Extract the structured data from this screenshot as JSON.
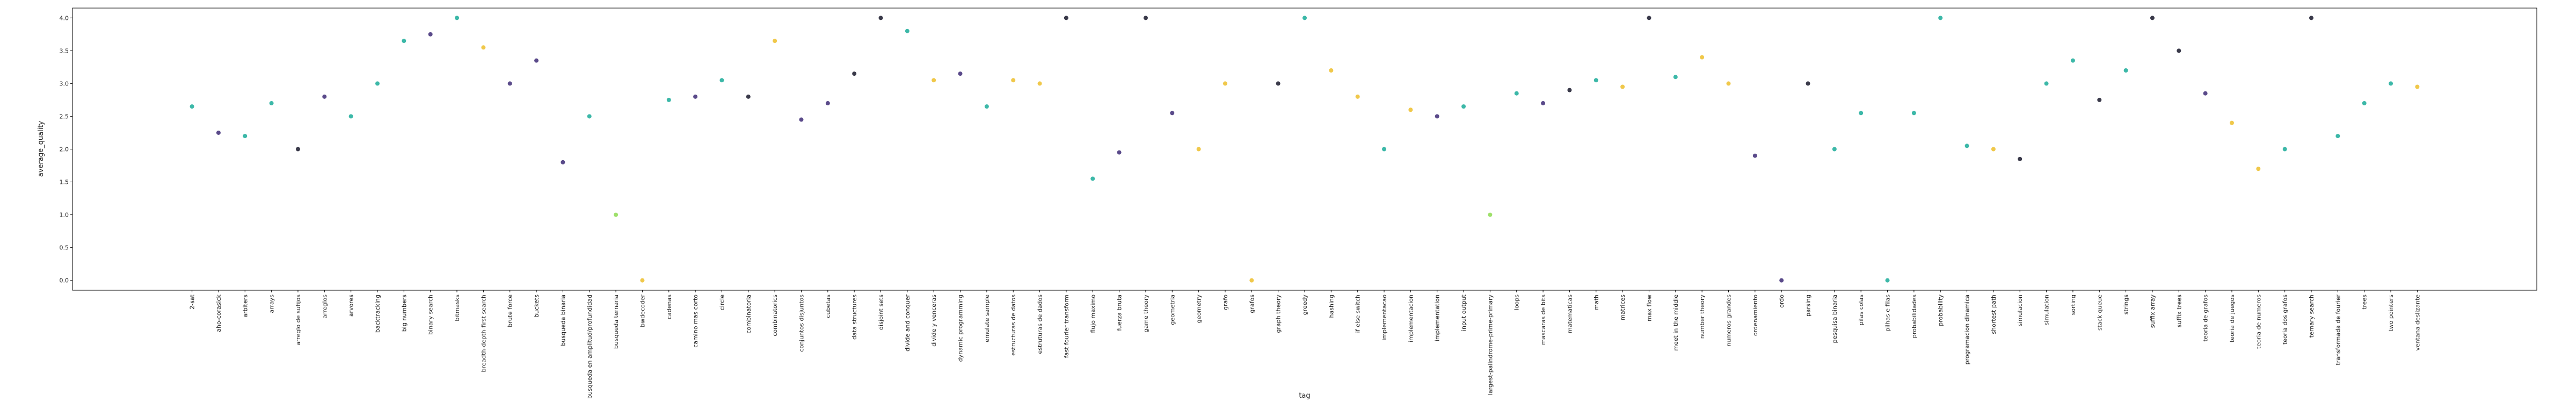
{
  "chart_data": {
    "type": "scatter",
    "x_label": "tag",
    "y_label": "average_quality",
    "ylim": [
      -0.15,
      4.15
    ],
    "yticks": [
      {
        "value": 0,
        "label": "0.0"
      },
      {
        "value": 0.5,
        "label": "0.5"
      },
      {
        "value": 1,
        "label": "1.0"
      },
      {
        "value": 1.5,
        "label": "1.5"
      },
      {
        "value": 2,
        "label": "2.0"
      },
      {
        "value": 2.5,
        "label": "2.5"
      },
      {
        "value": 3,
        "label": "3.0"
      },
      {
        "value": 3.5,
        "label": "3.5"
      },
      {
        "value": 4,
        "label": "4.0"
      }
    ],
    "categories": [
      "2-sat",
      "aho-corasick",
      "arbiters",
      "arrays",
      "arreglo de sufijos",
      "arreglos",
      "arvores",
      "backtracking",
      "big numbers",
      "binary search",
      "bitmasks",
      "breadth-depth-first search",
      "brute force",
      "buckets",
      "busqueda binaria",
      "busqueda en amplitud/profundidad",
      "busqueda ternaria",
      "bwdecoder",
      "cadenas",
      "camino mas corto",
      "circle",
      "combinatoria",
      "combinatorics",
      "conjuntos disjuntos",
      "cubetas",
      "data structures",
      "disjoint sets",
      "divide and conquer",
      "divide y venceras",
      "dynamic programming",
      "emulate sample",
      "estructuras de datos",
      "estruturas de dados",
      "fast fourier transform",
      "flujo maximo",
      "fuerza bruta",
      "game theory",
      "geometria",
      "geometry",
      "grafo",
      "grafos",
      "graph theory",
      "greedy",
      "hashing",
      "if else switch",
      "implementacao",
      "implementacion",
      "implementation",
      "input output",
      "largest-palindrome-prime-primary",
      "loops",
      "mascaras de bits",
      "matematicas",
      "math",
      "matrices",
      "max flow",
      "meet in the middle",
      "number theory",
      "numeros grandes",
      "ordenamiento",
      "ordo",
      "parsing",
      "pesquisa binaria",
      "pilas colas",
      "pilhas e filas",
      "probabilidades",
      "probability",
      "programacion dinamica",
      "shortest path",
      "simulacion",
      "simulation",
      "sorting",
      "stack queue",
      "strings",
      "suffix array",
      "suffix trees",
      "teoria de grafos",
      "teoria de juegos",
      "teoria de numeros",
      "teoria dos grafos",
      "ternary search",
      "transformada de fourier",
      "trees",
      "two pointers",
      "ventana deslizante"
    ],
    "values": [
      2.65,
      2.25,
      2.2,
      2.7,
      2.0,
      2.8,
      2.5,
      3.0,
      3.65,
      3.75,
      4.0,
      3.55,
      3.0,
      3.35,
      1.8,
      2.5,
      1.0,
      0.0,
      2.75,
      2.8,
      3.05,
      2.8,
      3.65,
      2.45,
      2.7,
      3.15,
      4.0,
      3.8,
      3.05,
      3.15,
      2.65,
      3.05,
      3.0,
      4.0,
      1.55,
      1.95,
      4.0,
      2.55,
      2.0,
      3.0,
      0.0,
      3.0,
      4.0,
      3.2,
      2.8,
      2.0,
      2.6,
      2.5,
      2.65,
      1.0,
      2.85,
      2.7,
      2.9,
      3.05,
      2.95,
      4.0,
      3.1,
      3.4,
      3.0,
      1.9,
      0.0,
      3.0,
      2.0,
      2.55,
      0.0,
      2.55,
      4.0,
      2.05,
      2.0,
      1.85,
      3.0,
      3.35,
      2.75,
      3.2,
      4.0,
      3.5,
      2.85,
      2.4,
      1.7,
      2.0,
      4.0,
      2.2,
      2.7,
      3.0,
      2.95
    ],
    "colors": [
      "#3cb8a8",
      "#5a4a8a",
      "#3cb8a8",
      "#3cb8a8",
      "#3a3a4a",
      "#5a4a8a",
      "#3cb8a8",
      "#3cb8a8",
      "#3cb8a8",
      "#5a4a8a",
      "#3cb8a8",
      "#f0c84a",
      "#5a4a8a",
      "#5a4a8a",
      "#5a4a8a",
      "#3cb8a8",
      "#9ee06a",
      "#f0c84a",
      "#3cb8a8",
      "#5a4a8a",
      "#3cb8a8",
      "#3a3a4a",
      "#f0c84a",
      "#5a4a8a",
      "#5a4a8a",
      "#3a3a4a",
      "#3a3a4a",
      "#3cb8a8",
      "#f0c84a",
      "#5a4a8a",
      "#3cb8a8",
      "#f0c84a",
      "#f0c84a",
      "#3a3a4a",
      "#3cb8a8",
      "#5a4a8a",
      "#3a3a4a",
      "#5a4a8a",
      "#f0c84a",
      "#f0c84a",
      "#f0c84a",
      "#3a3a4a",
      "#3cb8a8",
      "#f0c84a",
      "#f0c84a",
      "#3cb8a8",
      "#f0c84a",
      "#5a4a8a",
      "#3cb8a8",
      "#9ee06a",
      "#3cb8a8",
      "#5a4a8a",
      "#3a3a4a",
      "#3cb8a8",
      "#f0c84a",
      "#3a3a4a",
      "#3cb8a8",
      "#f0c84a",
      "#f0c84a",
      "#5a4a8a",
      "#5a4a8a",
      "#3a3a4a",
      "#3cb8a8",
      "#3cb8a8",
      "#3cb8a8",
      "#3cb8a8",
      "#3cb8a8",
      "#3cb8a8",
      "#f0c84a",
      "#3a3a4a",
      "#3cb8a8",
      "#3cb8a8",
      "#3a3a4a",
      "#3cb8a8",
      "#3a3a4a",
      "#3a3a4a",
      "#5a4a8a",
      "#f0c84a",
      "#f0c84a",
      "#3cb8a8",
      "#3a3a4a",
      "#3cb8a8",
      "#3cb8a8",
      "#3cb8a8",
      "#f0c84a"
    ]
  }
}
